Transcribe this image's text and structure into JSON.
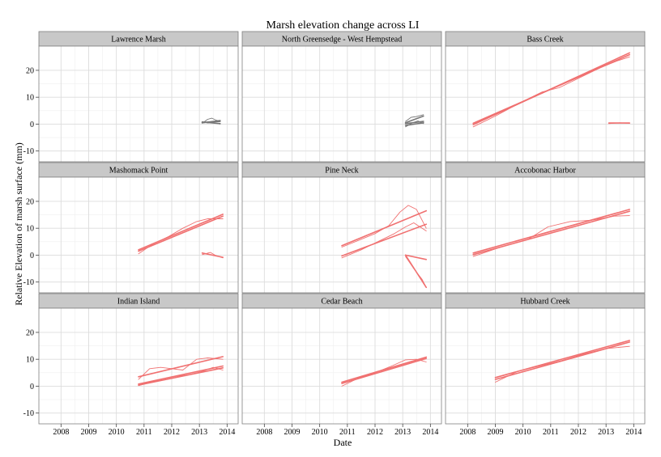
{
  "chart_data": {
    "type": "line",
    "title": "Marsh elevation change across LI",
    "xlabel": "Date",
    "ylabel": "Relative Elevation of marsh surface (mm)",
    "xlim": [
      2007.2,
      2014.4
    ],
    "ylim": [
      -14,
      29
    ],
    "x_ticks": [
      2008,
      2009,
      2010,
      2011,
      2012,
      2013,
      2014
    ],
    "y_ticks": [
      -10,
      0,
      10,
      20
    ],
    "grid": true,
    "legend": "none",
    "colors": {
      "red": "#f07070",
      "gray": "#777777",
      "strip": "#c8c8c8",
      "panel_border": "#7f7f7f",
      "grid_major": "#dcdcdc",
      "grid_minor": "#efefef"
    },
    "panels": [
      {
        "name": "Lawrence Marsh",
        "series": [
          {
            "color": "gray",
            "kind": "fit",
            "x": [
              2013.1,
              2013.75
            ],
            "y": [
              0.5,
              1.3
            ]
          },
          {
            "color": "gray",
            "kind": "fit",
            "x": [
              2013.1,
              2013.75
            ],
            "y": [
              0.8,
              0.2
            ]
          },
          {
            "color": "gray",
            "kind": "fit",
            "x": [
              2013.1,
              2013.75
            ],
            "y": [
              0.6,
              1.0
            ]
          },
          {
            "color": "gray",
            "kind": "obs",
            "x": [
              2013.1,
              2013.3,
              2013.45,
              2013.6,
              2013.75
            ],
            "y": [
              0.3,
              1.8,
              2.2,
              1.5,
              1.0
            ]
          },
          {
            "color": "gray",
            "kind": "obs",
            "x": [
              2013.1,
              2013.3,
              2013.5,
              2013.75
            ],
            "y": [
              0.9,
              0.4,
              0.6,
              0.0
            ]
          }
        ]
      },
      {
        "name": "North Greensedge - West Hempstead",
        "series": [
          {
            "color": "gray",
            "kind": "fit",
            "x": [
              2013.1,
              2013.75
            ],
            "y": [
              0.5,
              3.0
            ]
          },
          {
            "color": "gray",
            "kind": "fit",
            "x": [
              2013.1,
              2013.75
            ],
            "y": [
              0.2,
              1.0
            ]
          },
          {
            "color": "gray",
            "kind": "fit",
            "x": [
              2013.1,
              2013.75
            ],
            "y": [
              -0.5,
              0.5
            ]
          },
          {
            "color": "gray",
            "kind": "obs",
            "x": [
              2013.1,
              2013.3,
              2013.5,
              2013.75
            ],
            "y": [
              1.0,
              2.5,
              2.8,
              3.5
            ]
          },
          {
            "color": "gray",
            "kind": "obs",
            "x": [
              2013.1,
              2013.35,
              2013.55,
              2013.75
            ],
            "y": [
              -1.0,
              0.5,
              1.2,
              0.2
            ]
          }
        ]
      },
      {
        "name": "Bass Creek",
        "series": [
          {
            "color": "red",
            "kind": "fit",
            "x": [
              2008.2,
              2013.85
            ],
            "y": [
              -0.2,
              26.5
            ]
          },
          {
            "color": "red",
            "kind": "fit",
            "x": [
              2008.2,
              2013.85
            ],
            "y": [
              0.3,
              25.8
            ]
          },
          {
            "color": "red",
            "kind": "obs",
            "x": [
              2008.2,
              2009.0,
              2010.0,
              2010.7,
              2011.3,
              2012.0,
              2012.8,
              2013.4,
              2013.85
            ],
            "y": [
              -1.0,
              3.0,
              8.5,
              12.0,
              13.5,
              17.0,
              21.0,
              23.5,
              25.0
            ]
          },
          {
            "color": "red",
            "kind": "fit",
            "x": [
              2013.1,
              2013.85
            ],
            "y": [
              0.4,
              0.4
            ]
          },
          {
            "color": "red",
            "kind": "obs",
            "x": [
              2013.1,
              2013.5,
              2013.85
            ],
            "y": [
              0.2,
              0.5,
              0.3
            ]
          }
        ]
      },
      {
        "name": "Mashomack Point",
        "series": [
          {
            "color": "red",
            "kind": "fit",
            "x": [
              2010.8,
              2013.85
            ],
            "y": [
              2.0,
              15.2
            ]
          },
          {
            "color": "red",
            "kind": "fit",
            "x": [
              2010.8,
              2013.85
            ],
            "y": [
              1.5,
              14.5
            ]
          },
          {
            "color": "red",
            "kind": "obs",
            "x": [
              2010.8,
              2011.3,
              2011.9,
              2012.4,
              2012.9,
              2013.3,
              2013.85
            ],
            "y": [
              0.5,
              4.0,
              7.0,
              10.0,
              12.5,
              13.5,
              13.5
            ]
          },
          {
            "color": "red",
            "kind": "fit",
            "x": [
              2013.1,
              2013.85
            ],
            "y": [
              0.8,
              -0.8
            ]
          },
          {
            "color": "red",
            "kind": "obs",
            "x": [
              2013.1,
              2013.4,
              2013.6,
              2013.85
            ],
            "y": [
              0.2,
              1.0,
              -0.2,
              -1.0
            ]
          }
        ]
      },
      {
        "name": "Pine Neck",
        "series": [
          {
            "color": "red",
            "kind": "fit",
            "x": [
              2010.8,
              2013.85
            ],
            "y": [
              3.5,
              16.5
            ]
          },
          {
            "color": "red",
            "kind": "fit",
            "x": [
              2010.8,
              2013.85
            ],
            "y": [
              -0.3,
              11.5
            ]
          },
          {
            "color": "red",
            "kind": "obs",
            "x": [
              2010.8,
              2011.4,
              2012.0,
              2012.5,
              2012.9,
              2013.2,
              2013.5,
              2013.85
            ],
            "y": [
              3.0,
              5.5,
              8.0,
              11.0,
              16.0,
              18.5,
              17.0,
              10.0
            ]
          },
          {
            "color": "red",
            "kind": "obs",
            "x": [
              2010.8,
              2011.5,
              2012.1,
              2012.7,
              2013.1,
              2013.4,
              2013.85
            ],
            "y": [
              -1.0,
              2.0,
              5.0,
              8.0,
              10.5,
              12.0,
              9.0
            ]
          },
          {
            "color": "red",
            "kind": "fit",
            "x": [
              2013.1,
              2013.85
            ],
            "y": [
              0.0,
              -1.6
            ]
          },
          {
            "color": "red",
            "kind": "fit",
            "x": [
              2013.1,
              2013.85
            ],
            "y": [
              0.0,
              -12.0
            ]
          },
          {
            "color": "red",
            "kind": "obs",
            "x": [
              2013.1,
              2013.4,
              2013.7,
              2013.85
            ],
            "y": [
              -0.5,
              -5.0,
              -9.0,
              -12.0
            ]
          }
        ]
      },
      {
        "name": "Accobonac Harbor",
        "series": [
          {
            "color": "red",
            "kind": "fit",
            "x": [
              2008.2,
              2013.85
            ],
            "y": [
              0.8,
              17.0
            ]
          },
          {
            "color": "red",
            "kind": "fit",
            "x": [
              2008.2,
              2013.85
            ],
            "y": [
              0.2,
              16.3
            ]
          },
          {
            "color": "red",
            "kind": "obs",
            "x": [
              2008.2,
              2009.2,
              2010.2,
              2010.9,
              2011.7,
              2012.5,
              2013.3,
              2013.85
            ],
            "y": [
              -0.5,
              3.0,
              6.0,
              10.5,
              12.5,
              13.0,
              14.5,
              14.7
            ]
          }
        ]
      },
      {
        "name": "Indian Island",
        "series": [
          {
            "color": "red",
            "kind": "fit",
            "x": [
              2010.8,
              2013.85
            ],
            "y": [
              3.5,
              11.0
            ]
          },
          {
            "color": "red",
            "kind": "fit",
            "x": [
              2010.8,
              2013.85
            ],
            "y": [
              0.8,
              7.5
            ]
          },
          {
            "color": "red",
            "kind": "fit",
            "x": [
              2010.8,
              2013.85
            ],
            "y": [
              0.4,
              6.8
            ]
          },
          {
            "color": "red",
            "kind": "obs",
            "x": [
              2010.8,
              2011.2,
              2011.6,
              2012.0,
              2012.4,
              2012.9,
              2013.3,
              2013.85
            ],
            "y": [
              2.5,
              6.5,
              7.0,
              6.5,
              6.0,
              10.0,
              10.5,
              10.0
            ]
          },
          {
            "color": "red",
            "kind": "obs",
            "x": [
              2010.8,
              2011.4,
              2012.0,
              2012.6,
              2013.1,
              2013.5,
              2013.85
            ],
            "y": [
              0.2,
              2.0,
              3.5,
              4.2,
              5.5,
              7.0,
              6.0
            ]
          }
        ]
      },
      {
        "name": "Cedar Beach",
        "series": [
          {
            "color": "red",
            "kind": "fit",
            "x": [
              2010.8,
              2013.85
            ],
            "y": [
              1.5,
              10.8
            ]
          },
          {
            "color": "red",
            "kind": "fit",
            "x": [
              2010.8,
              2013.85
            ],
            "y": [
              1.0,
              10.3
            ]
          },
          {
            "color": "red",
            "kind": "obs",
            "x": [
              2010.8,
              2011.4,
              2012.0,
              2012.6,
              2013.1,
              2013.5,
              2013.85
            ],
            "y": [
              0.0,
              3.0,
              5.0,
              7.5,
              9.8,
              10.0,
              9.0
            ]
          }
        ]
      },
      {
        "name": "Hubbard Creek",
        "series": [
          {
            "color": "red",
            "kind": "fit",
            "x": [
              2009.0,
              2013.85
            ],
            "y": [
              3.2,
              17.0
            ]
          },
          {
            "color": "red",
            "kind": "fit",
            "x": [
              2009.0,
              2013.85
            ],
            "y": [
              2.5,
              16.4
            ]
          },
          {
            "color": "red",
            "kind": "obs",
            "x": [
              2009.0,
              2009.8,
              2010.6,
              2011.4,
              2012.2,
              2013.0,
              2013.85
            ],
            "y": [
              1.5,
              5.5,
              7.5,
              9.5,
              12.0,
              14.0,
              14.8
            ]
          }
        ]
      }
    ]
  }
}
